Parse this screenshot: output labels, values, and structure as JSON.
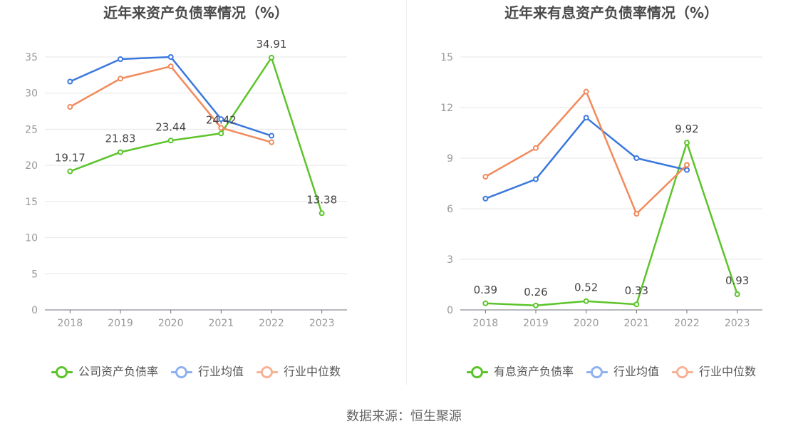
{
  "footer": {
    "source": "数据来源：恒生聚源"
  },
  "chart_data": [
    {
      "type": "line",
      "title": "近年来资产负债率情况（%）",
      "categories": [
        "2018",
        "2019",
        "2020",
        "2021",
        "2022",
        "2023"
      ],
      "ylim": [
        0,
        35
      ],
      "yticks": [
        0,
        5,
        10,
        15,
        20,
        25,
        30,
        35
      ],
      "grid": true,
      "legend": "bottom",
      "series": [
        {
          "name": "公司资产负债率",
          "color": "#5cc42a",
          "legend_color": "#5cc42a",
          "show_labels": true,
          "values": [
            19.17,
            21.83,
            23.44,
            24.42,
            34.91,
            13.38
          ]
        },
        {
          "name": "行业均值",
          "color": "#3b78dd",
          "legend_color": "#8fb1ee",
          "show_labels": false,
          "values": [
            31.6,
            34.7,
            35.0,
            26.4,
            24.1,
            null
          ]
        },
        {
          "name": "行业中位数",
          "color": "#f28a5c",
          "legend_color": "#f6b396",
          "show_labels": false,
          "values": [
            28.1,
            32.0,
            33.7,
            25.2,
            23.2,
            null
          ]
        }
      ]
    },
    {
      "type": "line",
      "title": "近年来有息资产负债率情况（%）",
      "categories": [
        "2018",
        "2019",
        "2020",
        "2021",
        "2022",
        "2023"
      ],
      "ylim": [
        0,
        15
      ],
      "yticks": [
        0,
        3,
        6,
        9,
        12,
        15
      ],
      "grid": true,
      "legend": "bottom",
      "series": [
        {
          "name": "有息资产负债率",
          "color": "#5cc42a",
          "legend_color": "#5cc42a",
          "show_labels": true,
          "values": [
            0.39,
            0.26,
            0.52,
            0.33,
            9.92,
            0.93
          ]
        },
        {
          "name": "行业均值",
          "color": "#3b78dd",
          "legend_color": "#8fb1ee",
          "show_labels": false,
          "values": [
            6.6,
            7.75,
            11.4,
            9.0,
            8.3,
            null
          ]
        },
        {
          "name": "行业中位数",
          "color": "#f28a5c",
          "legend_color": "#f6b396",
          "show_labels": false,
          "values": [
            7.9,
            9.6,
            12.95,
            5.7,
            8.6,
            null
          ]
        }
      ]
    }
  ]
}
